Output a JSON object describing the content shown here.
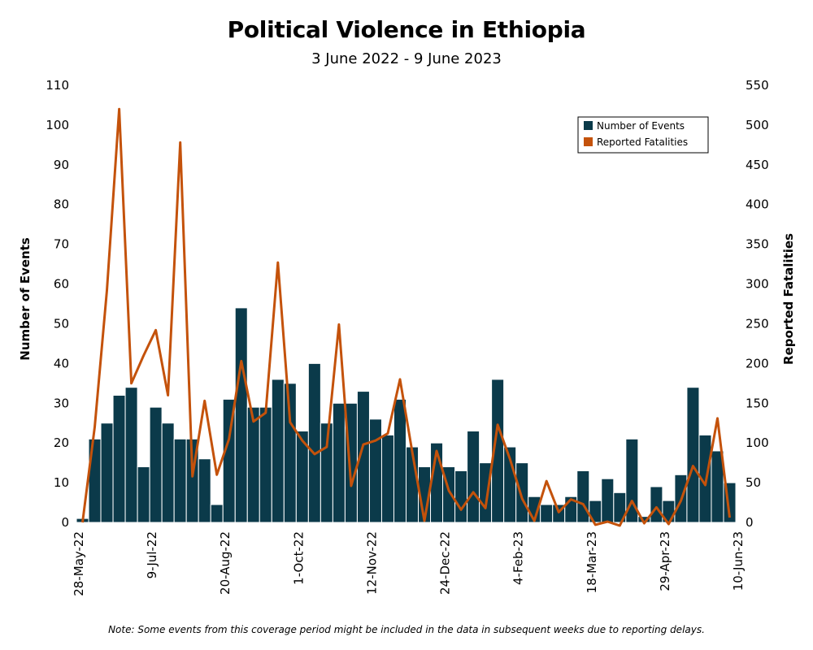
{
  "title": "Political Violence in Ethiopia",
  "subtitle": "3 June 2022 - 9 June 2023",
  "note": "Note: Some events from this coverage period might be included in the data in subsequent weeks due to reporting delays.",
  "colors": {
    "events": "#0b3a4a",
    "fatalities": "#c4520b",
    "bar_edge": "#ffffff"
  },
  "chart_data": {
    "type": "bar",
    "title": "Political Violence in Ethiopia",
    "subtitle": "3 June 2022 - 9 June 2023",
    "ylabel": "Number of Events",
    "y2label": "Reported Fatalities",
    "ylim": [
      0,
      110
    ],
    "y2lim": [
      0,
      550
    ],
    "yticks": [
      0,
      10,
      20,
      30,
      40,
      50,
      60,
      70,
      80,
      90,
      100,
      110
    ],
    "y2ticks": [
      0,
      50,
      100,
      150,
      200,
      250,
      300,
      350,
      400,
      450,
      500,
      550
    ],
    "xticks": [
      "28-May-22",
      "9-Jul-22",
      "20-Aug-22",
      "1-Oct-22",
      "12-Nov-22",
      "24-Dec-22",
      "4-Feb-23",
      "18-Mar-23",
      "29-Apr-23",
      "10-Jun-23"
    ],
    "legend": [
      "Number of Events",
      "Reported Fatalities"
    ],
    "legend_position": "top-right",
    "grid": false,
    "series": [
      {
        "name": "Number of Events",
        "type": "bar",
        "values": [
          1,
          21,
          25,
          32,
          34,
          14,
          29,
          25,
          21,
          21,
          16,
          4.5,
          31,
          54,
          29,
          29,
          36,
          35,
          23,
          40,
          25,
          30,
          30,
          33,
          26,
          22,
          31,
          19,
          14,
          20,
          14,
          13,
          23,
          15,
          36,
          19,
          15,
          6.5,
          4.5,
          4.5,
          6.5,
          13,
          5.5,
          11,
          7.5,
          21,
          1.5,
          9,
          5.5,
          12,
          34,
          22,
          18,
          10
        ]
      },
      {
        "name": "Reported Fatalities",
        "type": "line",
        "axis": "right",
        "values": [
          0,
          120,
          292,
          520,
          175,
          210,
          242,
          160,
          478,
          58,
          153,
          60,
          105,
          203,
          127,
          138,
          327,
          126,
          103,
          86,
          95,
          249,
          46,
          98,
          103,
          112,
          180,
          89,
          2,
          90,
          40,
          16,
          38,
          18,
          123,
          80,
          30,
          2,
          52,
          13,
          29,
          23,
          -3,
          1,
          -4,
          27,
          -1,
          19,
          -2,
          27,
          71,
          47,
          131,
          6
        ]
      }
    ]
  }
}
